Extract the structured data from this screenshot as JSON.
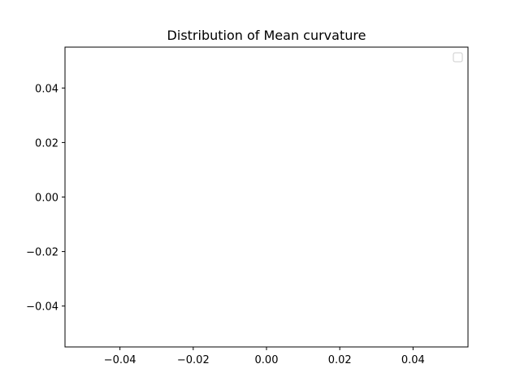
{
  "chart_data": {
    "type": "scatter",
    "title": "Distribution of Mean curvature",
    "xlabel": "",
    "ylabel": "",
    "xlim": [
      -0.055,
      0.055
    ],
    "ylim": [
      -0.055,
      0.055
    ],
    "xticks": [
      -0.04,
      -0.02,
      0.0,
      0.02,
      0.04
    ],
    "xtick_labels": [
      "−0.04",
      "−0.02",
      "0.00",
      "0.02",
      "0.04"
    ],
    "yticks": [
      -0.04,
      -0.02,
      0.0,
      0.02,
      0.04
    ],
    "ytick_labels": [
      "−0.04",
      "−0.02",
      "0.00",
      "0.02",
      "0.04"
    ],
    "series": [],
    "grid": false,
    "legend": {
      "placement": "upper right",
      "entries": []
    }
  }
}
